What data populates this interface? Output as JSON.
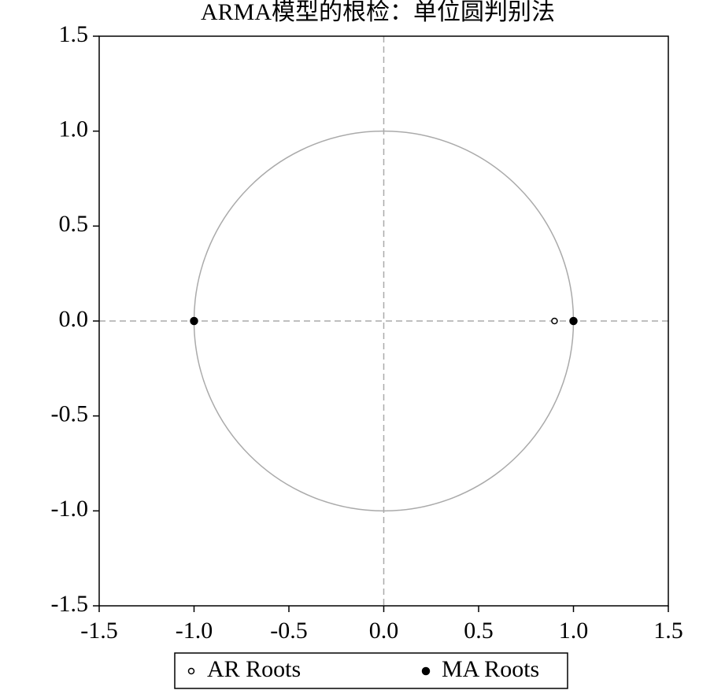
{
  "chart_data": {
    "type": "scatter",
    "title": "ARMA模型的根检：单位圆判别法",
    "series": [
      {
        "name": "AR Roots",
        "color": "#000000",
        "marker": "hollow",
        "x": [
          0.9
        ],
        "values": [
          0
        ]
      },
      {
        "name": "MA Roots",
        "color": "#000000",
        "marker": "filled",
        "x": [
          -1,
          1
        ],
        "values": [
          0,
          0
        ]
      }
    ],
    "xlim": [
      -1.5,
      1.5
    ],
    "ylim": [
      -1.5,
      1.5
    ],
    "xticks": [
      -1.5,
      {
        "value": -1,
        "label": "-1.0"
      },
      -0.5,
      {
        "value": 0,
        "label": "0.0"
      },
      0.5,
      {
        "value": 1,
        "label": "1.0"
      },
      1.5
    ],
    "yticks": [
      -1.5,
      {
        "value": -1,
        "label": "-1.0"
      },
      -0.5,
      {
        "value": 0,
        "label": "0.0"
      },
      0.5,
      {
        "value": 1,
        "label": "1.0"
      },
      1.5
    ],
    "unit_circle": {
      "radius": 1,
      "color": "#aaaaaa"
    },
    "zero_lines": true,
    "legend": "bottom"
  }
}
